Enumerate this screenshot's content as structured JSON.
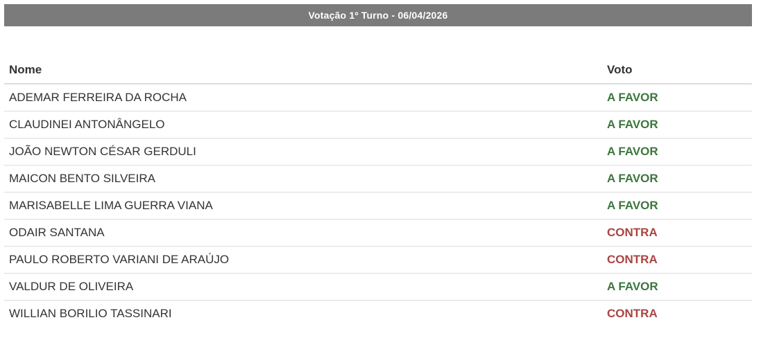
{
  "title": "Votação 1º Turno - 06/04/2026",
  "columns": {
    "name": "Nome",
    "vote": "Voto"
  },
  "colors": {
    "favor": "#3c763d",
    "contra": "#a94442",
    "title_bar": "#7b7b7b"
  },
  "rows": [
    {
      "name": "ADEMAR FERREIRA DA ROCHA",
      "vote": "A FAVOR"
    },
    {
      "name": "CLAUDINEI ANTONÂNGELO",
      "vote": "A FAVOR"
    },
    {
      "name": "JOÃO NEWTON CÉSAR GERDULI",
      "vote": "A FAVOR"
    },
    {
      "name": "MAICON BENTO SILVEIRA",
      "vote": "A FAVOR"
    },
    {
      "name": "MARISABELLE LIMA GUERRA VIANA",
      "vote": "A FAVOR"
    },
    {
      "name": "ODAIR SANTANA",
      "vote": "CONTRA"
    },
    {
      "name": "PAULO ROBERTO VARIANI DE ARAÚJO",
      "vote": "CONTRA"
    },
    {
      "name": "VALDUR DE OLIVEIRA",
      "vote": "A FAVOR"
    },
    {
      "name": "WILLIAN BORILIO TASSINARI",
      "vote": "CONTRA"
    }
  ]
}
